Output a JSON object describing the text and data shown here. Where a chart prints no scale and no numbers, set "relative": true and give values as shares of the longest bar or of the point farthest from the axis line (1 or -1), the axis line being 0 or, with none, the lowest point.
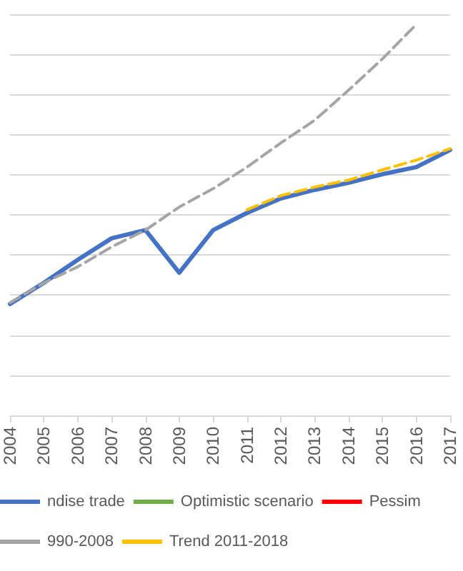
{
  "chart_data": {
    "type": "line",
    "relative": true,
    "grid": "y",
    "legend": "bottom",
    "marker": "none",
    "categories": [
      "2004",
      "2005",
      "2006",
      "2007",
      "2008",
      "2009",
      "2010",
      "2011",
      "2012",
      "2013",
      "2014",
      "2015",
      "2016",
      "2017"
    ],
    "series": [
      {
        "name": "ndise trade",
        "color": "#4472c4",
        "line_style": "solid",
        "values": [
          0.285,
          0.339,
          0.398,
          0.453,
          0.474,
          0.365,
          0.474,
          0.518,
          0.555,
          0.577,
          0.595,
          0.617,
          0.635,
          0.679
        ]
      },
      {
        "name": "Optimistic scenario",
        "color": "#70ad47",
        "line_style": "solid",
        "values": [
          null,
          null,
          null,
          null,
          null,
          null,
          null,
          null,
          null,
          null,
          null,
          null,
          null,
          null
        ]
      },
      {
        "name": "Pessim",
        "color": "#ff0000",
        "line_style": "solid",
        "values": [
          null,
          null,
          null,
          null,
          null,
          null,
          null,
          null,
          null,
          null,
          null,
          null,
          null,
          null
        ]
      },
      {
        "name": "990-2008",
        "color": "#a5a5a5",
        "line_style": "dashed",
        "values": [
          0.288,
          0.339,
          0.38,
          0.431,
          0.474,
          0.533,
          0.58,
          0.635,
          0.697,
          0.755,
          0.832,
          0.912,
          1,
          null
        ]
      },
      {
        "name": "Trend 2011-2018",
        "color": "#ffc000",
        "line_style": "dashed",
        "values": [
          null,
          null,
          null,
          null,
          null,
          null,
          null,
          0.526,
          0.562,
          0.584,
          0.602,
          0.628,
          0.653,
          0.682
        ]
      }
    ]
  }
}
